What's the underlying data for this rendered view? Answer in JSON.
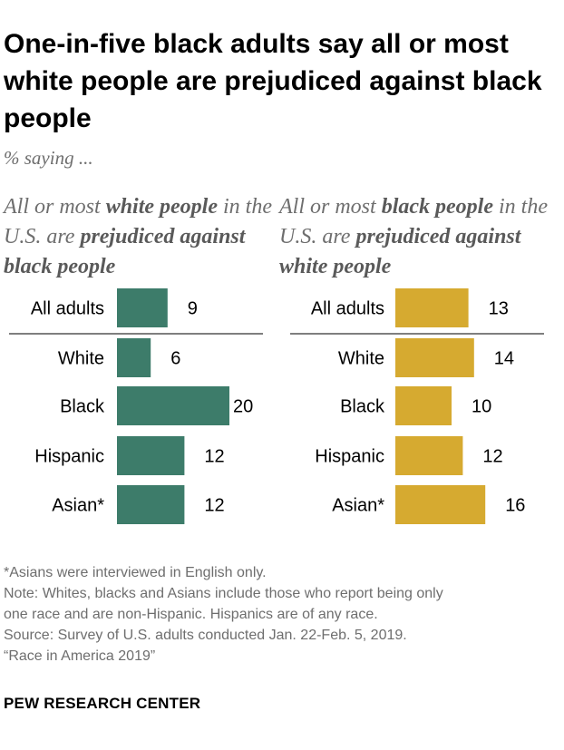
{
  "title": "One-in-five black adults say all or most white people are prejudiced against black people",
  "subtitle": "% saying ...",
  "colors": {
    "left_bar": "#3d7c6a",
    "right_bar": "#d6aa30",
    "divider": "#7f7f7f"
  },
  "panels": {
    "left": {
      "title_parts": [
        {
          "text": "All or most ",
          "bold": false
        },
        {
          "text": "white people",
          "bold": true
        },
        {
          "text": " in the U.S. are ",
          "bold": false
        },
        {
          "text": "prejudiced against black people",
          "bold": true
        }
      ]
    },
    "right": {
      "title_parts": [
        {
          "text": "All or most ",
          "bold": false
        },
        {
          "text": "black people",
          "bold": true
        },
        {
          "text": " in the U.S. are ",
          "bold": false
        },
        {
          "text": "prejudiced against white people",
          "bold": true
        }
      ]
    }
  },
  "chart_data": [
    {
      "type": "bar",
      "title": "All or most white people in the U.S. are prejudiced against black people",
      "categories": [
        "All adults",
        "White",
        "Black",
        "Hispanic",
        "Asian*"
      ],
      "values": [
        9,
        6,
        20,
        12,
        12
      ],
      "color": "#3d7c6a"
    },
    {
      "type": "bar",
      "title": "All or most black people in the U.S. are prejudiced against white people",
      "categories": [
        "All adults",
        "White",
        "Black",
        "Hispanic",
        "Asian*"
      ],
      "values": [
        13,
        14,
        10,
        12,
        16
      ],
      "color": "#d6aa30"
    }
  ],
  "notes": {
    "asian_note": "*Asians were interviewed in English only.",
    "note_line1": "Note: Whites, blacks and Asians include those who report being only",
    "note_line2": "one race and are non-Hispanic. Hispanics are of any race.",
    "source": "Source: Survey of U.S. adults conducted Jan. 22-Feb. 5, 2019.",
    "report": "“Race in America 2019”"
  },
  "brand": "PEW RESEARCH CENTER"
}
